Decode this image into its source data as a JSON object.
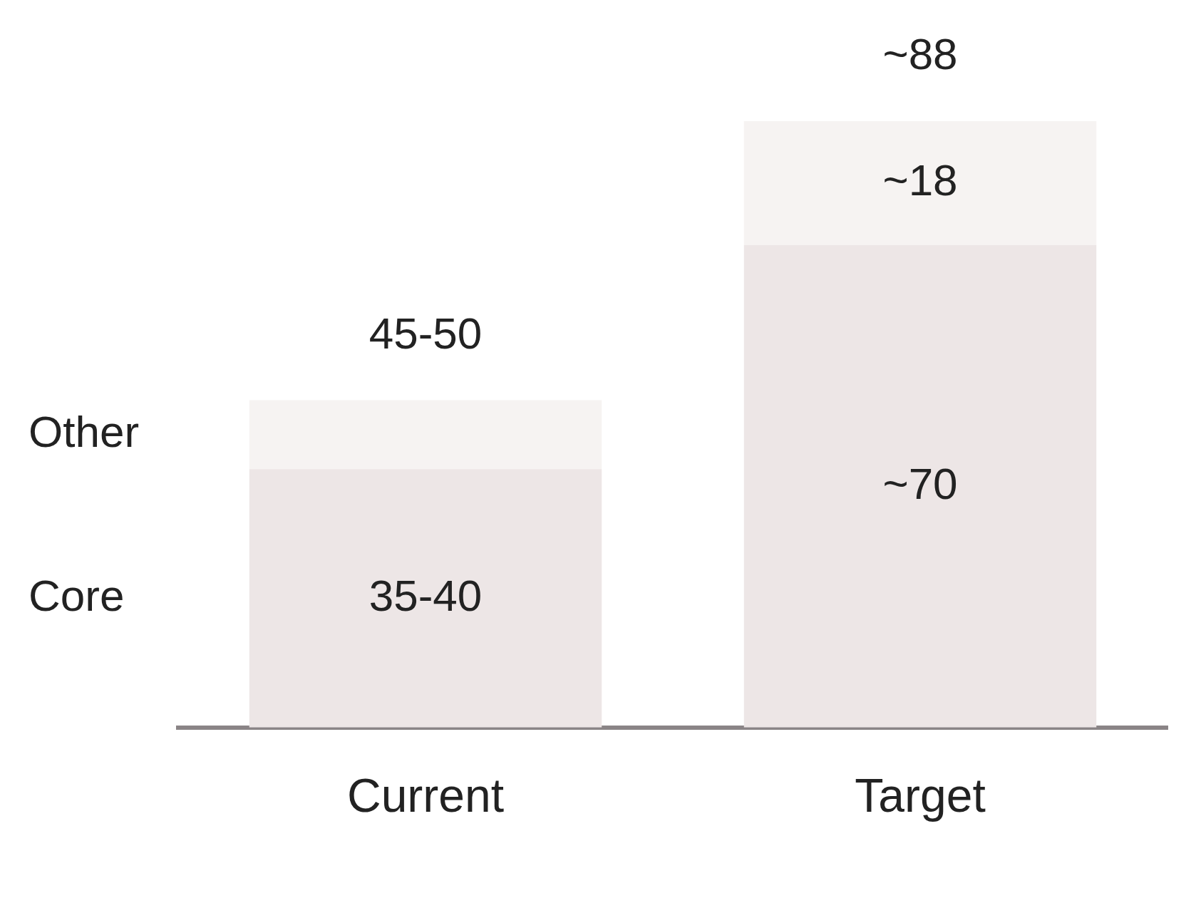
{
  "chart_data": {
    "type": "bar",
    "stacked": true,
    "categories": [
      "Current",
      "Target"
    ],
    "series": [
      {
        "name": "Core",
        "color": "#ede6e6",
        "values": [
          37.5,
          70
        ],
        "value_labels": [
          "35-40",
          "~70"
        ]
      },
      {
        "name": "Other",
        "color": "#f6f3f2",
        "values": [
          10,
          18
        ],
        "value_labels": [
          null,
          "~18"
        ]
      }
    ],
    "totals": [
      "45-50",
      "~88"
    ],
    "legend": false,
    "grid": false
  }
}
